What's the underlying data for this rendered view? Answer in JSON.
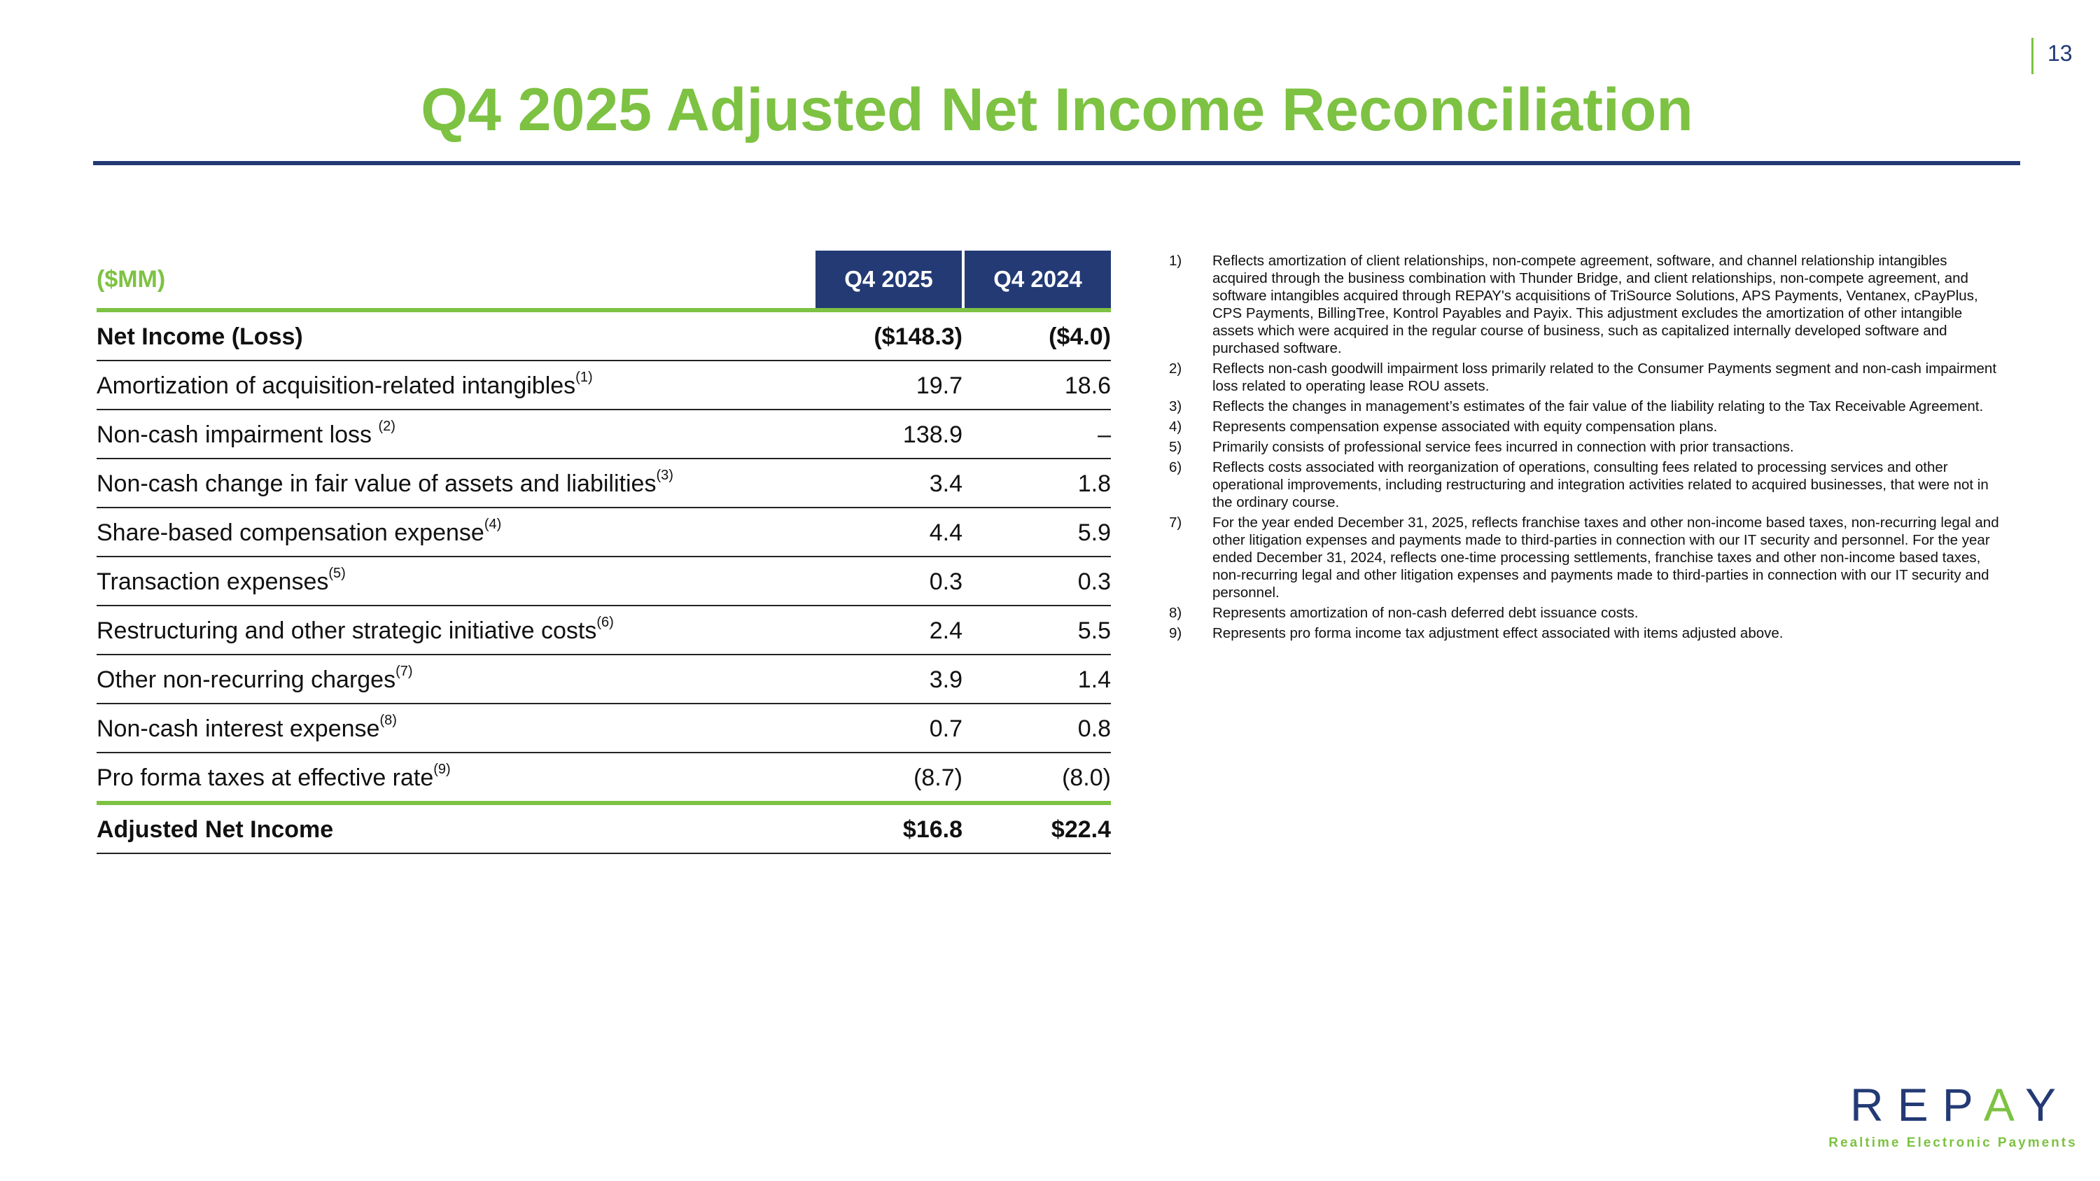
{
  "page_number": "13",
  "title": "Q4 2025 Adjusted Net Income Reconciliation",
  "colors": {
    "accent_green": "#7dc242",
    "navy": "#233a75"
  },
  "table": {
    "unit_label": "($MM)",
    "columns": [
      "Q4 2025",
      "Q4 2024"
    ],
    "rows": [
      {
        "label": "Net Income (Loss)",
        "note": "",
        "values": [
          "($148.3)",
          "($4.0)"
        ],
        "bold": true
      },
      {
        "label": "Amortization of acquisition-related intangibles",
        "note": "(1)",
        "values": [
          "19.7",
          "18.6"
        ]
      },
      {
        "label": "Non-cash impairment loss ",
        "note": "(2)",
        "values": [
          "138.9",
          "–"
        ]
      },
      {
        "label": "Non-cash change in fair value of assets and liabilities",
        "note": "(3)",
        "values": [
          "3.4",
          "1.8"
        ]
      },
      {
        "label": "Share-based compensation expense",
        "note": "(4)",
        "values": [
          "4.4",
          "5.9"
        ]
      },
      {
        "label": "Transaction expenses",
        "note": "(5)",
        "values": [
          "0.3",
          "0.3"
        ]
      },
      {
        "label": "Restructuring and other strategic initiative costs",
        "note": "(6)",
        "values": [
          "2.4",
          "5.5"
        ]
      },
      {
        "label": "Other non-recurring charges",
        "note": "(7)",
        "values": [
          "3.9",
          "1.4"
        ]
      },
      {
        "label": "Non-cash interest expense",
        "note": "(8)",
        "values": [
          "0.7",
          "0.8"
        ]
      },
      {
        "label": "Pro forma taxes at effective rate",
        "note": "(9)",
        "values": [
          "(8.7)",
          "(8.0)"
        ]
      },
      {
        "label": "Adjusted Net Income",
        "note": "",
        "values": [
          "$16.8",
          "$22.4"
        ],
        "bold": true
      }
    ]
  },
  "footnotes": [
    {
      "num": "1)",
      "text": "Reflects amortization of client relationships, non-compete agreement, software, and channel relationship intangibles acquired through the business combination with Thunder Bridge, and client relationships, non-compete agreement, and software intangibles acquired through REPAY's acquisitions of TriSource Solutions, APS Payments, Ventanex, cPayPlus, CPS Payments, BillingTree, Kontrol Payables and Payix. This adjustment excludes the amortization of other intangible assets which were acquired in the regular course of business, such as capitalized internally developed software and purchased software."
    },
    {
      "num": "2)",
      "text": "Reflects non-cash goodwill impairment loss primarily related to the Consumer Payments segment and non-cash impairment loss related to operating lease ROU assets."
    },
    {
      "num": "3)",
      "text": "Reflects the changes in management’s estimates of the fair value of the liability relating to the Tax Receivable Agreement."
    },
    {
      "num": "4)",
      "text": "Represents compensation expense associated with equity compensation plans."
    },
    {
      "num": "5)",
      "text": "Primarily consists of professional service fees incurred in connection with prior transactions."
    },
    {
      "num": "6)",
      "text": "Reflects costs associated with reorganization of operations, consulting fees related to processing services and other operational improvements, including restructuring and integration activities related to acquired businesses, that were not in the ordinary course."
    },
    {
      "num": "7)",
      "text": "For the year ended December 31, 2025, reflects franchise taxes and other non-income based taxes, non-recurring legal and other litigation expenses and payments made to third-parties in connection with our IT security and personnel. For the year ended December 31, 2024, reflects one-time processing settlements, franchise taxes and other non-income based taxes, non-recurring legal and other litigation expenses and payments made to third-parties in connection with our IT security and personnel."
    },
    {
      "num": "8)",
      "text": "Represents amortization of non-cash deferred debt issuance costs."
    },
    {
      "num": "9)",
      "text": "Represents pro forma income tax adjustment effect associated with items adjusted above."
    }
  ],
  "logo": {
    "wordmark": "REPAY",
    "tagline": "Realtime Electronic Payments"
  }
}
